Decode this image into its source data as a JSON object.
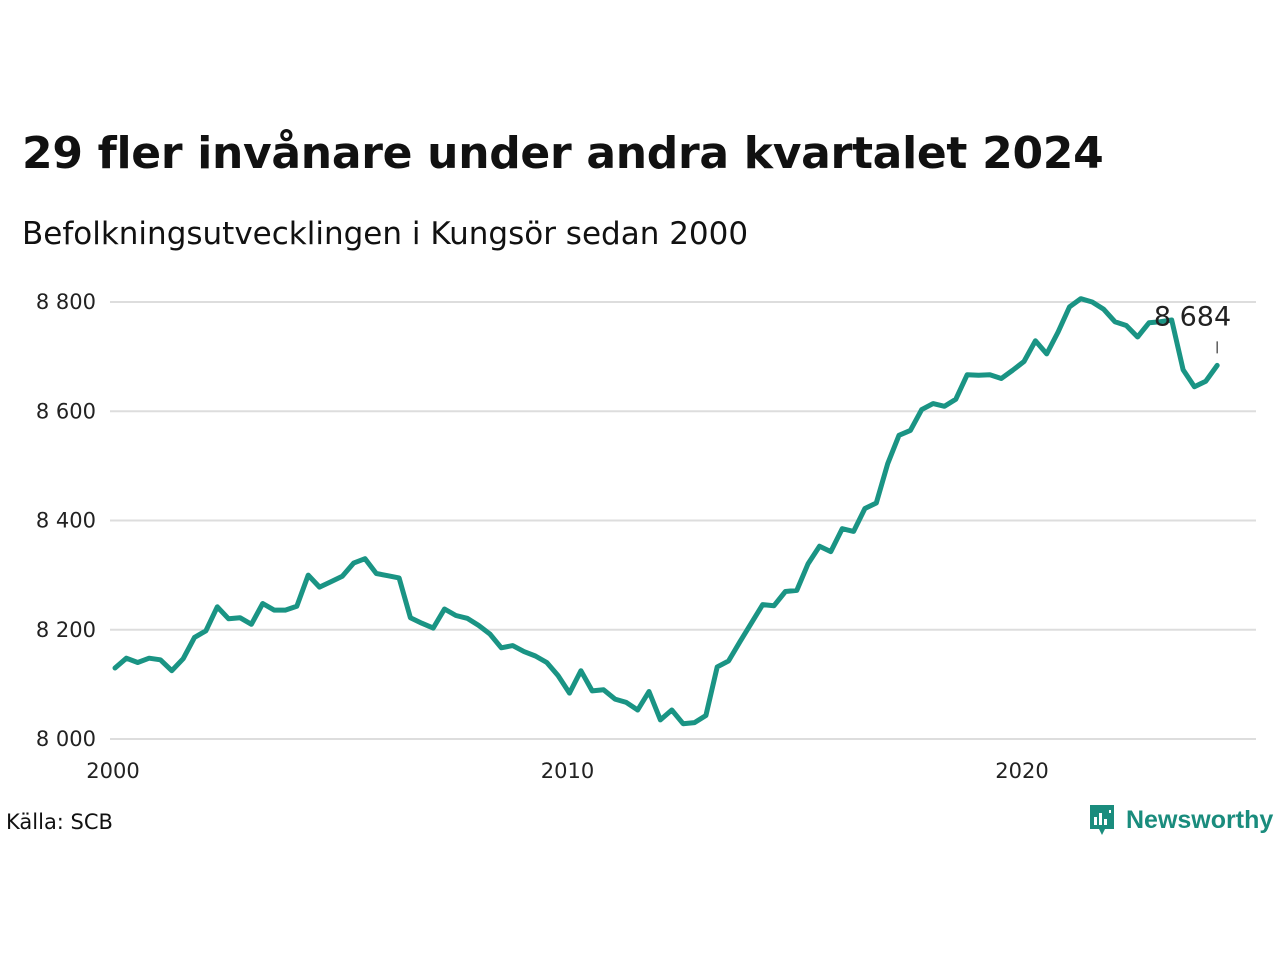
{
  "chart_data": {
    "type": "line",
    "title": "29 fler invånare under andra kvartalet 2024",
    "subtitle": "Befolkningsutvecklingen i Kungsör sedan 2000",
    "xlabel": "",
    "ylabel": "",
    "ylim": [
      8000,
      8800
    ],
    "y_ticks": [
      8000,
      8200,
      8400,
      8600,
      8800
    ],
    "y_tick_labels": [
      "8 000",
      "8 200",
      "8 400",
      "8 600",
      "8 800"
    ],
    "x_ticks": [
      2000,
      2010,
      2020
    ],
    "x_tick_labels": [
      "2000",
      "2010",
      "2020"
    ],
    "grid": true,
    "line_color": "#1a9484",
    "end_label": "8 684",
    "x": [
      2000.0,
      2000.25,
      2000.5,
      2000.75,
      2001.0,
      2001.25,
      2001.5,
      2001.75,
      2002.0,
      2002.25,
      2002.5,
      2002.75,
      2003.0,
      2003.25,
      2003.5,
      2003.75,
      2004.0,
      2004.25,
      2004.5,
      2004.75,
      2005.0,
      2005.25,
      2005.5,
      2005.75,
      2006.0,
      2006.25,
      2006.5,
      2006.75,
      2007.0,
      2007.25,
      2007.5,
      2007.75,
      2008.0,
      2008.25,
      2008.5,
      2008.75,
      2009.0,
      2009.25,
      2009.5,
      2009.75,
      2010.0,
      2010.25,
      2010.5,
      2010.75,
      2011.0,
      2011.25,
      2011.5,
      2011.75,
      2012.0,
      2012.25,
      2012.5,
      2012.75,
      2013.0,
      2013.25,
      2013.5,
      2013.75,
      2014.0,
      2014.25,
      2014.5,
      2014.75,
      2015.0,
      2015.25,
      2015.5,
      2015.75,
      2016.0,
      2016.25,
      2016.5,
      2016.75,
      2017.0,
      2017.25,
      2017.5,
      2017.75,
      2018.0,
      2018.25,
      2018.5,
      2018.75,
      2019.0,
      2019.25,
      2019.5,
      2019.75,
      2020.0,
      2020.25,
      2020.5,
      2020.75,
      2021.0,
      2021.25,
      2021.5,
      2021.75,
      2022.0,
      2022.25,
      2022.5,
      2022.75,
      2023.0,
      2023.25,
      2023.5,
      2023.75,
      2024.0,
      2024.25
    ],
    "values": [
      8130,
      8148,
      8140,
      8148,
      8145,
      8125,
      8147,
      8186,
      8198,
      8242,
      8220,
      8222,
      8210,
      8248,
      8236,
      8236,
      8243,
      8300,
      8278,
      8288,
      8298,
      8322,
      8330,
      8303,
      8299,
      8295,
      8222,
      8212,
      8203,
      8238,
      8226,
      8221,
      8208,
      8192,
      8167,
      8171,
      8160,
      8152,
      8140,
      8116,
      8084,
      8125,
      8088,
      8090,
      8073,
      8067,
      8053,
      8087,
      8035,
      8053,
      8028,
      8030,
      8043,
      8132,
      8143,
      8178,
      8212,
      8246,
      8244,
      8270,
      8272,
      8321,
      8353,
      8343,
      8385,
      8380,
      8422,
      8432,
      8504,
      8556,
      8565,
      8603,
      8614,
      8609,
      8622,
      8667,
      8666,
      8667,
      8660,
      8675,
      8691,
      8729,
      8705,
      8745,
      8791,
      8806,
      8800,
      8787,
      8764,
      8757,
      8736,
      8762,
      8764,
      8767,
      8676,
      8645,
      8655,
      8684
    ]
  },
  "footer": {
    "source": "Källa: SCB",
    "brand": "Newsworthy"
  }
}
